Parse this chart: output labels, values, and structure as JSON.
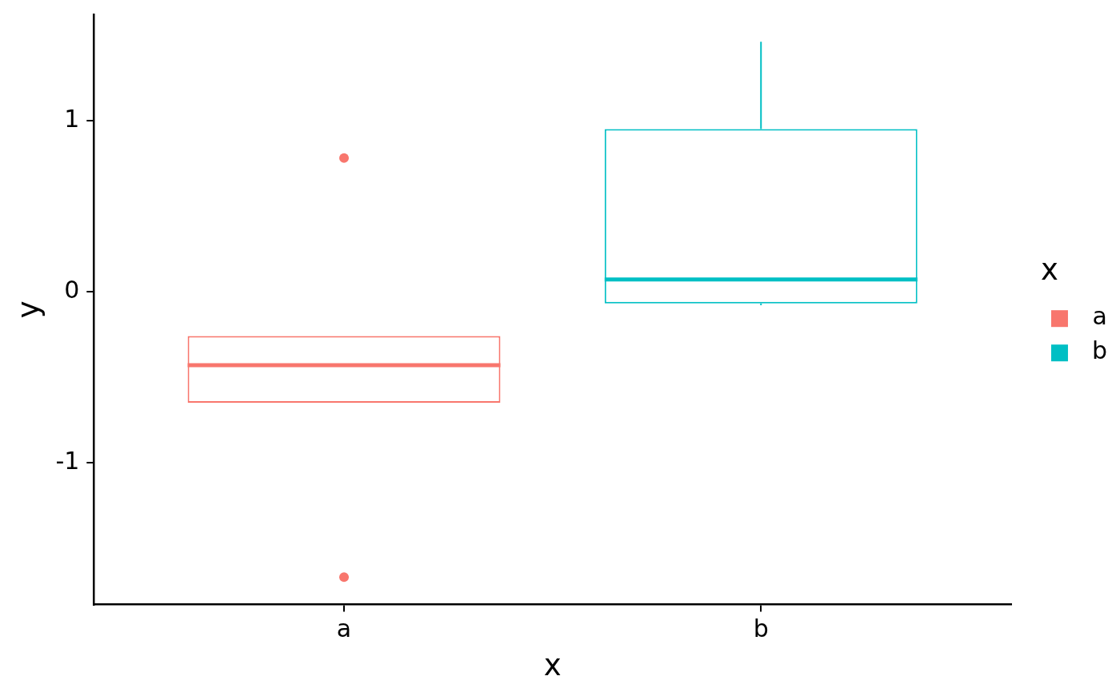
{
  "chart_data": {
    "type": "box",
    "categories": [
      "a",
      "b"
    ],
    "series": [
      {
        "name": "a",
        "color": "#f8766d",
        "boxes": [
          {
            "low": -0.65,
            "q1": -0.65,
            "median": -0.43,
            "q3": -0.26,
            "high": -0.26,
            "outliers": [
              0.78,
              -1.67
            ]
          },
          null
        ]
      },
      {
        "name": "b",
        "color": "#00bfc4",
        "boxes": [
          null,
          {
            "low": -0.08,
            "q1": -0.07,
            "median": 0.07,
            "q3": 0.95,
            "high": 1.46
          }
        ]
      }
    ],
    "xlabel": "x",
    "ylabel": "y",
    "legend_title": "x",
    "legend": "right",
    "ylim": [
      -1.83,
      1.62
    ],
    "yticks": [
      -1,
      0,
      1
    ]
  }
}
